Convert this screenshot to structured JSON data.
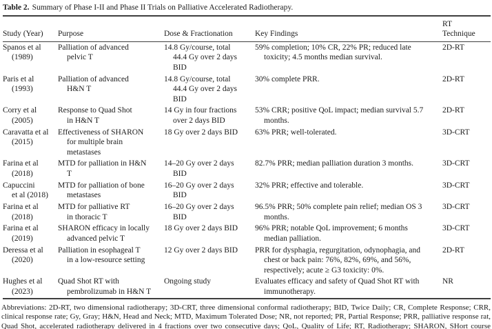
{
  "caption": {
    "label": "Table 2.",
    "text": "Summary of Phase I-II and Phase II Trials on Palliative Accelerated Radiotherapy."
  },
  "table": {
    "columns": [
      "Study (Year)",
      "Purpose",
      "Dose & Fractionation",
      "Key Findings",
      "RT Technique"
    ],
    "rows": [
      {
        "study": "Spanos et al\n(1989)",
        "purpose": "Palliation of advanced\npelvic T",
        "dose": "14.8 Gy/course, total\n44.4 Gy over 2 days\nBID",
        "findings": "59% completion; 10% CR, 22% PR; reduced late\ntoxicity; 4.5 months median survival.",
        "technique": "2D-RT"
      },
      {
        "study": "Paris et al\n(1993)",
        "purpose": "Palliation of advanced\nH&N T",
        "dose": "14.8 Gy/course, total\n44.4 Gy over 2 days\nBID",
        "findings": "30% complete PRR.",
        "technique": "2D-RT"
      },
      {
        "study": "Corry et al\n(2005)",
        "purpose": "Response to Quad Shot\nin H&N T",
        "dose": "14 Gy in four fractions\nover 2 days BID",
        "findings": "53% CRR; positive QoL impact; median survival 5.7\nmonths.",
        "technique": "2D-RT"
      },
      {
        "study": "Caravatta et al\n(2015)",
        "purpose": "Effectiveness of SHARON\nfor multiple brain\nmetastases",
        "dose": "18 Gy over 2 days BID",
        "findings": "63% PRR; well-tolerated.",
        "technique": "3D-CRT"
      },
      {
        "study": "Farina et al\n(2018)",
        "purpose": "MTD for palliation in H&N\nT",
        "dose": "14–20 Gy over 2 days\nBID",
        "findings": "82.7% PRR; median palliation duration 3 months.",
        "technique": "3D-CRT"
      },
      {
        "study": "Capuccini\net al (2018)",
        "purpose": "MTD for palliation of bone\nmetastases",
        "dose": "16–20 Gy over 2 days\nBID",
        "findings": "32% PRR; effective and tolerable.",
        "technique": "3D-CRT"
      },
      {
        "study": "Farina et al\n(2018)",
        "purpose": "MTD for palliative RT\nin thoracic T",
        "dose": "16–20 Gy over 2 days\nBID",
        "findings": "96.5% PRR; 50% complete pain relief; median OS 3\nmonths.",
        "technique": "3D-CRT"
      },
      {
        "study": "Farina et al\n(2019)",
        "purpose": "SHARON efficacy in locally\nadvanced pelvic T",
        "dose": "18 Gy over 2 days BID",
        "findings": "96% PRR; notable QoL improvement; 6 months\nmedian palliation.",
        "technique": "3D-CRT"
      },
      {
        "study": "Deressa et al\n(2020)",
        "purpose": "Palliation in esophageal T\nin a low-resource setting",
        "dose": "12 Gy over 2 days BID",
        "findings": "PRR for dysphagia, regurgitation, odynophagia, and\nchest or back pain: 76%, 82%, 69%, and 56%,\nrespectively; acute ≥ G3 toxicity: 0%.",
        "technique": "2D-RT"
      },
      {
        "study": "Hughes et al\n(2023)",
        "purpose": "Quad Shot RT with\npembrolizumab in H&N T",
        "dose": "Ongoing study",
        "findings": "Evaluates efficacy and safety of Quad Shot RT with\nimmunotherapy.",
        "technique": "NR"
      }
    ]
  },
  "footnote": "Abbreviations: 2D-RT, two dimensional radiotherapy; 3D-CRT, three dimensional conformal radiotherapy; BID, Twice Daily; CR, Complete Response; CRR, clinical response rate; Gy, Gray; H&N, Head and Neck; MTD, Maximum Tolerated Dose; NR, not reported; PR, Partial Response; PRR, palliative response rat, Quad Shot, accelerated radiotherapy delivered in 4 fractions over two consecutive days; QoL, Quality of Life; RT, Radiotherapy; SHARON, SHort course Accelerated RadiatiON therapy, T, tumor."
}
